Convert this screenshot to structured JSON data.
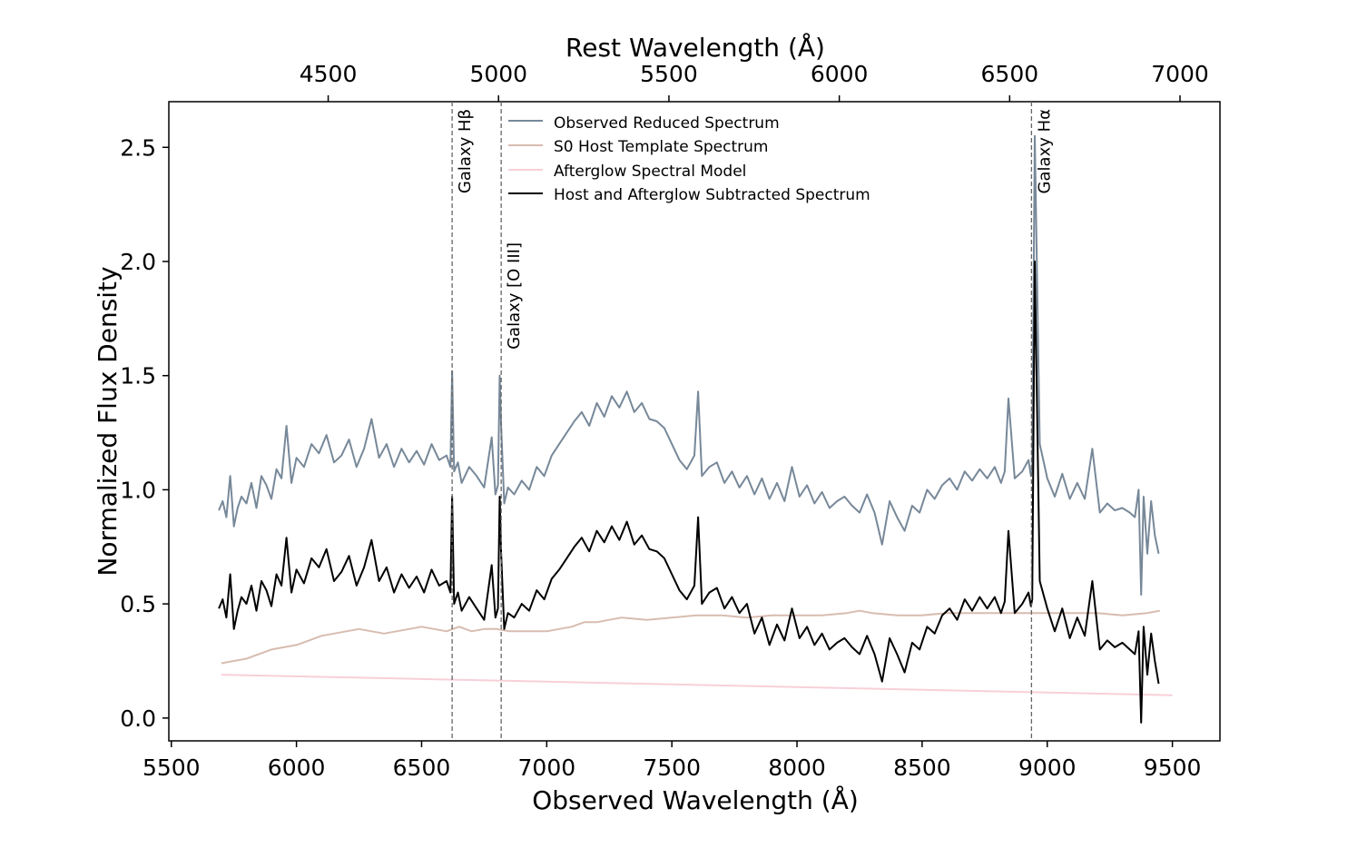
{
  "chart_data": {
    "type": "line",
    "xlabel": "Observed Wavelength (Å)",
    "x2label": "Rest Wavelength (Å)",
    "ylabel": "Normalized Flux Density",
    "xlim": [
      5490,
      9690
    ],
    "ylim": [
      -0.1,
      2.7
    ],
    "xticks": [
      5500,
      6000,
      6500,
      7000,
      7500,
      8000,
      8500,
      9000,
      9500
    ],
    "yticks": [
      0.0,
      0.5,
      1.0,
      1.5,
      2.0,
      2.5
    ],
    "ytick_labels": [
      "0.0",
      "0.5",
      "1.0",
      "1.5",
      "2.0",
      "2.5"
    ],
    "redshift": 0.3615,
    "x2ticks": [
      4500,
      5000,
      5500,
      6000,
      6500,
      7000
    ],
    "legend_position": "top-left",
    "series": [
      {
        "name": "Observed Reduced Spectrum",
        "color": "#778899",
        "x": [
          5690,
          5705,
          5720,
          5735,
          5750,
          5765,
          5780,
          5800,
          5820,
          5840,
          5860,
          5880,
          5900,
          5920,
          5940,
          5960,
          5980,
          6000,
          6030,
          6060,
          6090,
          6120,
          6150,
          6180,
          6210,
          6240,
          6270,
          6300,
          6330,
          6360,
          6390,
          6420,
          6450,
          6480,
          6510,
          6540,
          6570,
          6600,
          6615,
          6622,
          6630,
          6645,
          6660,
          6690,
          6720,
          6750,
          6780,
          6795,
          6805,
          6812,
          6818,
          6830,
          6845,
          6870,
          6900,
          6930,
          6960,
          6990,
          7020,
          7050,
          7080,
          7110,
          7140,
          7170,
          7200,
          7230,
          7260,
          7290,
          7320,
          7350,
          7380,
          7410,
          7440,
          7470,
          7500,
          7530,
          7560,
          7590,
          7605,
          7620,
          7650,
          7680,
          7710,
          7740,
          7770,
          7800,
          7830,
          7860,
          7890,
          7920,
          7950,
          7980,
          8010,
          8040,
          8070,
          8100,
          8130,
          8160,
          8190,
          8220,
          8250,
          8280,
          8310,
          8340,
          8370,
          8400,
          8430,
          8460,
          8490,
          8520,
          8550,
          8580,
          8610,
          8640,
          8670,
          8700,
          8730,
          8760,
          8790,
          8815,
          8830,
          8845,
          8870,
          8900,
          8925,
          8935,
          8940,
          8950,
          8970,
          9000,
          9030,
          9060,
          9090,
          9120,
          9150,
          9180,
          9210,
          9240,
          9270,
          9300,
          9330,
          9350,
          9365,
          9375,
          9385,
          9400,
          9415,
          9430,
          9445
        ],
        "y": [
          0.91,
          0.95,
          0.88,
          1.06,
          0.84,
          0.92,
          0.97,
          0.94,
          1.03,
          0.92,
          1.06,
          1.02,
          0.96,
          1.09,
          1.05,
          1.28,
          1.03,
          1.14,
          1.1,
          1.2,
          1.16,
          1.24,
          1.12,
          1.15,
          1.22,
          1.1,
          1.18,
          1.31,
          1.14,
          1.2,
          1.1,
          1.18,
          1.12,
          1.17,
          1.11,
          1.2,
          1.13,
          1.15,
          1.1,
          1.52,
          1.08,
          1.12,
          1.03,
          1.1,
          1.06,
          1.01,
          1.23,
          0.98,
          1.02,
          1.5,
          1.28,
          0.94,
          1.01,
          0.98,
          1.04,
          1.0,
          1.1,
          1.06,
          1.15,
          1.2,
          1.25,
          1.3,
          1.34,
          1.28,
          1.38,
          1.32,
          1.41,
          1.36,
          1.43,
          1.34,
          1.38,
          1.31,
          1.3,
          1.27,
          1.2,
          1.13,
          1.09,
          1.15,
          1.43,
          1.06,
          1.1,
          1.12,
          1.03,
          1.08,
          1.01,
          1.06,
          0.98,
          1.05,
          0.96,
          1.03,
          0.95,
          1.1,
          0.97,
          1.02,
          0.94,
          0.99,
          0.92,
          0.95,
          0.97,
          0.93,
          0.9,
          0.98,
          0.9,
          0.76,
          0.95,
          0.88,
          0.82,
          0.93,
          0.9,
          1.0,
          0.96,
          1.02,
          1.05,
          1.0,
          1.08,
          1.04,
          1.09,
          1.05,
          1.1,
          1.03,
          1.08,
          1.4,
          1.05,
          1.08,
          1.13,
          1.06,
          1.1,
          2.55,
          1.2,
          1.05,
          0.97,
          1.07,
          0.96,
          1.03,
          0.96,
          1.18,
          0.9,
          0.94,
          0.91,
          0.92,
          0.9,
          0.88,
          1.0,
          0.54,
          0.97,
          0.72,
          0.95,
          0.8,
          0.72
        ]
      },
      {
        "name": "S0 Host Template Spectrum",
        "color": "#d8bcb0",
        "x": [
          5700,
          5800,
          5900,
          6000,
          6050,
          6100,
          6150,
          6200,
          6250,
          6300,
          6350,
          6400,
          6450,
          6500,
          6550,
          6600,
          6650,
          6700,
          6750,
          6800,
          6850,
          6900,
          6950,
          7000,
          7050,
          7100,
          7150,
          7200,
          7250,
          7300,
          7400,
          7500,
          7600,
          7700,
          7800,
          7900,
          8000,
          8100,
          8200,
          8250,
          8300,
          8400,
          8500,
          8600,
          8700,
          8800,
          8900,
          9000,
          9100,
          9200,
          9300,
          9400,
          9450
        ],
        "y": [
          0.24,
          0.26,
          0.3,
          0.32,
          0.34,
          0.36,
          0.37,
          0.38,
          0.39,
          0.38,
          0.37,
          0.38,
          0.39,
          0.4,
          0.39,
          0.38,
          0.4,
          0.38,
          0.39,
          0.39,
          0.38,
          0.38,
          0.38,
          0.38,
          0.39,
          0.4,
          0.42,
          0.42,
          0.43,
          0.44,
          0.43,
          0.44,
          0.45,
          0.45,
          0.44,
          0.45,
          0.45,
          0.45,
          0.46,
          0.47,
          0.46,
          0.45,
          0.45,
          0.46,
          0.46,
          0.46,
          0.46,
          0.46,
          0.46,
          0.46,
          0.45,
          0.46,
          0.47
        ]
      },
      {
        "name": "Afterglow Spectral Model",
        "color": "#f8d0d8",
        "x": [
          5700,
          9500
        ],
        "y": [
          0.19,
          0.1
        ]
      },
      {
        "name": "Host and Afterglow Subtracted Spectrum",
        "color": "#000000",
        "x": [
          5690,
          5705,
          5720,
          5735,
          5750,
          5765,
          5780,
          5800,
          5820,
          5840,
          5860,
          5880,
          5900,
          5920,
          5940,
          5960,
          5980,
          6000,
          6030,
          6060,
          6090,
          6120,
          6150,
          6180,
          6210,
          6240,
          6270,
          6300,
          6330,
          6360,
          6390,
          6420,
          6450,
          6480,
          6510,
          6540,
          6570,
          6600,
          6615,
          6622,
          6630,
          6645,
          6660,
          6690,
          6720,
          6750,
          6780,
          6795,
          6805,
          6812,
          6818,
          6830,
          6845,
          6870,
          6900,
          6930,
          6960,
          6990,
          7020,
          7050,
          7080,
          7110,
          7140,
          7170,
          7200,
          7230,
          7260,
          7290,
          7320,
          7350,
          7380,
          7410,
          7440,
          7470,
          7500,
          7530,
          7560,
          7590,
          7605,
          7620,
          7650,
          7680,
          7710,
          7740,
          7770,
          7800,
          7830,
          7860,
          7890,
          7920,
          7950,
          7980,
          8010,
          8040,
          8070,
          8100,
          8130,
          8160,
          8190,
          8220,
          8250,
          8280,
          8310,
          8340,
          8370,
          8400,
          8430,
          8460,
          8490,
          8520,
          8550,
          8580,
          8610,
          8640,
          8670,
          8700,
          8730,
          8760,
          8790,
          8815,
          8830,
          8845,
          8870,
          8900,
          8925,
          8935,
          8940,
          8950,
          8970,
          9000,
          9030,
          9060,
          9090,
          9120,
          9150,
          9180,
          9210,
          9240,
          9270,
          9300,
          9330,
          9350,
          9365,
          9375,
          9385,
          9400,
          9415,
          9430,
          9445
        ],
        "y": [
          0.48,
          0.52,
          0.44,
          0.63,
          0.39,
          0.47,
          0.53,
          0.5,
          0.58,
          0.47,
          0.6,
          0.56,
          0.49,
          0.63,
          0.58,
          0.79,
          0.55,
          0.65,
          0.59,
          0.7,
          0.66,
          0.74,
          0.6,
          0.64,
          0.71,
          0.58,
          0.66,
          0.78,
          0.6,
          0.66,
          0.55,
          0.63,
          0.57,
          0.62,
          0.55,
          0.65,
          0.58,
          0.6,
          0.55,
          0.97,
          0.5,
          0.55,
          0.47,
          0.53,
          0.48,
          0.43,
          0.67,
          0.44,
          0.48,
          0.97,
          0.72,
          0.39,
          0.46,
          0.44,
          0.5,
          0.47,
          0.56,
          0.52,
          0.61,
          0.65,
          0.7,
          0.75,
          0.79,
          0.73,
          0.82,
          0.77,
          0.84,
          0.78,
          0.86,
          0.76,
          0.8,
          0.74,
          0.73,
          0.7,
          0.63,
          0.56,
          0.52,
          0.58,
          0.88,
          0.5,
          0.55,
          0.57,
          0.48,
          0.53,
          0.46,
          0.5,
          0.37,
          0.44,
          0.32,
          0.41,
          0.34,
          0.48,
          0.35,
          0.4,
          0.32,
          0.37,
          0.3,
          0.33,
          0.35,
          0.31,
          0.28,
          0.36,
          0.28,
          0.16,
          0.35,
          0.28,
          0.2,
          0.33,
          0.3,
          0.4,
          0.37,
          0.45,
          0.48,
          0.43,
          0.52,
          0.47,
          0.53,
          0.48,
          0.53,
          0.46,
          0.51,
          0.82,
          0.46,
          0.5,
          0.55,
          0.49,
          0.52,
          2.0,
          0.6,
          0.48,
          0.38,
          0.48,
          0.35,
          0.44,
          0.36,
          0.6,
          0.3,
          0.34,
          0.31,
          0.33,
          0.3,
          0.28,
          0.38,
          -0.02,
          0.4,
          0.19,
          0.37,
          0.25,
          0.15
        ]
      }
    ],
    "vlines": [
      {
        "x": 6622,
        "label": "Galaxy Hβ"
      },
      {
        "x": 6818,
        "label": "Galaxy [O III]"
      },
      {
        "x": 8937,
        "label": "Galaxy Hα"
      }
    ]
  }
}
